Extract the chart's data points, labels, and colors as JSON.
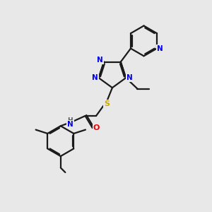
{
  "bg_color": "#e8e8e8",
  "bond_color": "#1a1a1a",
  "atom_colors": {
    "N": "#0000ee",
    "O": "#ee0000",
    "S": "#ccaa00",
    "H": "#2fa0a0",
    "C": "#1a1a1a"
  },
  "lw": 1.6,
  "dbo": 0.055,
  "fs": 7.5
}
